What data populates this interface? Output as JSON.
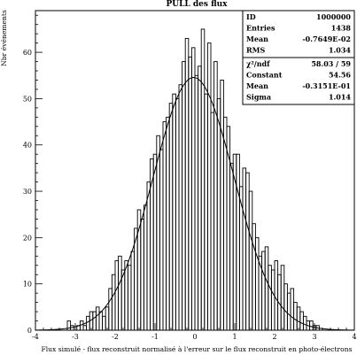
{
  "chart_data": {
    "type": "histogram",
    "title": "PULL des flux",
    "xlabel": "Flux simulé - flux reconstruit normalisé à l'erreur sur le flux reconstruit  en photo-électrons",
    "ylabel": "Nbr événements",
    "xlim": [
      -4,
      4
    ],
    "ylim": [
      0,
      69
    ],
    "x_ticks": [
      -4,
      -3,
      -2,
      -1,
      0,
      1,
      2,
      3,
      4
    ],
    "y_ticks": [
      0,
      10,
      20,
      30,
      40,
      50,
      60
    ],
    "bin_width": 0.08,
    "bins": [
      [
        -3.2,
        2
      ],
      [
        -3.12,
        1
      ],
      [
        -2.96,
        1
      ],
      [
        -2.88,
        2
      ],
      [
        -2.8,
        1
      ],
      [
        -2.72,
        3
      ],
      [
        -2.64,
        4
      ],
      [
        -2.56,
        4
      ],
      [
        -2.48,
        5
      ],
      [
        -2.4,
        4
      ],
      [
        -2.32,
        3
      ],
      [
        -2.24,
        5
      ],
      [
        -2.16,
        9
      ],
      [
        -2.08,
        12
      ],
      [
        -2.0,
        15
      ],
      [
        -1.92,
        16
      ],
      [
        -1.84,
        13
      ],
      [
        -1.76,
        15
      ],
      [
        -1.68,
        14
      ],
      [
        -1.6,
        17
      ],
      [
        -1.52,
        22
      ],
      [
        -1.44,
        26
      ],
      [
        -1.36,
        24
      ],
      [
        -1.28,
        27
      ],
      [
        -1.2,
        32
      ],
      [
        -1.12,
        37
      ],
      [
        -1.04,
        38
      ],
      [
        -0.96,
        42
      ],
      [
        -0.88,
        39
      ],
      [
        -0.8,
        45
      ],
      [
        -0.72,
        46
      ],
      [
        -0.64,
        49
      ],
      [
        -0.56,
        51
      ],
      [
        -0.48,
        50
      ],
      [
        -0.4,
        53
      ],
      [
        -0.32,
        58
      ],
      [
        -0.24,
        63
      ],
      [
        -0.16,
        59
      ],
      [
        -0.08,
        61
      ],
      [
        0.0,
        55
      ],
      [
        0.08,
        57
      ],
      [
        0.16,
        65
      ],
      [
        0.24,
        51
      ],
      [
        0.32,
        62
      ],
      [
        0.4,
        47
      ],
      [
        0.48,
        58
      ],
      [
        0.56,
        50
      ],
      [
        0.64,
        54
      ],
      [
        0.72,
        46
      ],
      [
        0.8,
        44
      ],
      [
        0.88,
        36
      ],
      [
        0.96,
        38
      ],
      [
        1.04,
        38
      ],
      [
        1.12,
        31
      ],
      [
        1.2,
        35
      ],
      [
        1.28,
        34
      ],
      [
        1.36,
        30
      ],
      [
        1.44,
        23
      ],
      [
        1.52,
        20
      ],
      [
        1.6,
        16
      ],
      [
        1.68,
        17
      ],
      [
        1.76,
        18
      ],
      [
        1.84,
        14
      ],
      [
        1.92,
        13
      ],
      [
        2.0,
        15
      ],
      [
        2.08,
        12
      ],
      [
        2.16,
        14
      ],
      [
        2.24,
        10
      ],
      [
        2.32,
        8
      ],
      [
        2.4,
        9
      ],
      [
        2.48,
        6
      ],
      [
        2.56,
        5
      ],
      [
        2.64,
        4
      ],
      [
        2.72,
        3
      ],
      [
        2.8,
        2
      ],
      [
        2.88,
        2
      ],
      [
        2.96,
        1
      ],
      [
        3.04,
        1
      ]
    ],
    "fit": {
      "type": "gaussian",
      "constant": 54.56,
      "mean": -0.03151,
      "sigma": 1.014
    },
    "stats_box": {
      "placement": "top-right",
      "rows": [
        {
          "label": "ID",
          "value": "1000000"
        },
        {
          "label": "Entries",
          "value": "1438"
        },
        {
          "label": "Mean",
          "value": "-0.7649E-02"
        },
        {
          "label": "RMS",
          "value": "1.034"
        }
      ],
      "fit_rows": [
        {
          "label": "χ²/ndf",
          "value": "58.03   /   59"
        },
        {
          "label": "Constant",
          "value": "54.56"
        },
        {
          "label": "Mean",
          "value": "-0.3151E-01"
        },
        {
          "label": "Sigma",
          "value": "1.014"
        }
      ]
    }
  }
}
